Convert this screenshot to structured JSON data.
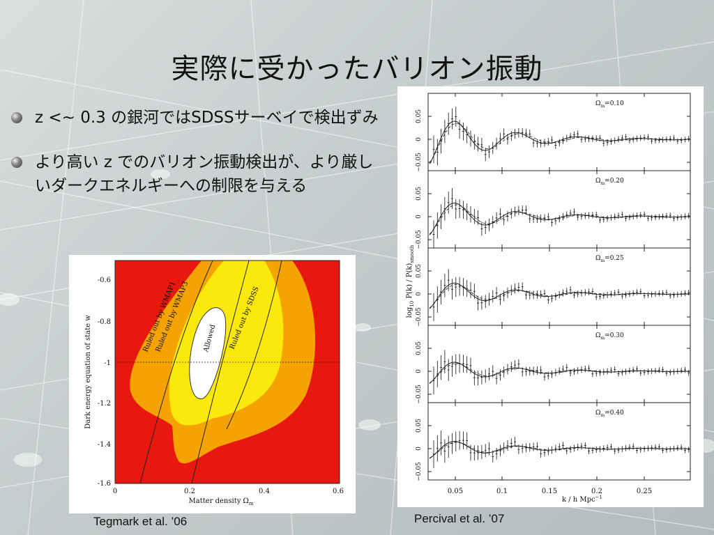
{
  "slide": {
    "title": "実際に受かったバリオン振動",
    "bullets": [
      "z <~ 0.3 の銀河ではSDSSサーベイで検出ずみ",
      "より高い z でのバリオン振動検出が、より厳しいダークエネルギーへの制限を与える"
    ],
    "caption_left": "Tegmark et al. ’06",
    "caption_right": "Percival et al. ’07"
  },
  "figure_left": {
    "xlabel": "Matter density Ω",
    "xlabel_sub": "m",
    "ylabel": "Dark energy equation of state w",
    "xticks": [
      "0",
      "0.2",
      "0.4",
      "0.6"
    ],
    "yticks": [
      "-0.6",
      "-0.8",
      "-1",
      "-1.2",
      "-1.4",
      "-1.6"
    ],
    "region_labels": [
      "Ruled out by WMAP1",
      "Ruled out by WMAP3",
      "Ruled out by SDSS",
      "Allowed"
    ],
    "colors": {
      "wmap1": "#e8180e",
      "wmap3": "#f5a300",
      "sdss": "#fbe90b",
      "allowed": "#ffffff"
    }
  },
  "figure_right": {
    "ylabel": "log",
    "ylabel_sub": "10",
    "ylabel_rest": " P(k) / P(k)",
    "ylabel_sub2": "smooth",
    "xlabel": "k / h Mpc",
    "xlabel_sup": "−1",
    "xticks": [
      "0.05",
      "0.1",
      "0.15",
      "0.2",
      "0.25"
    ],
    "yticks": [
      "0.05",
      "0",
      "−0.05"
    ],
    "panels": [
      {
        "label": "Ω",
        "label_sub": "m",
        "value": "=0.10"
      },
      {
        "label": "Ω",
        "label_sub": "m",
        "value": "=0.20"
      },
      {
        "label": "Ω",
        "label_sub": "m",
        "value": "=0.25"
      },
      {
        "label": "Ω",
        "label_sub": "m",
        "value": "=0.30"
      },
      {
        "label": "Ω",
        "label_sub": "m",
        "value": "=0.40"
      }
    ]
  }
}
